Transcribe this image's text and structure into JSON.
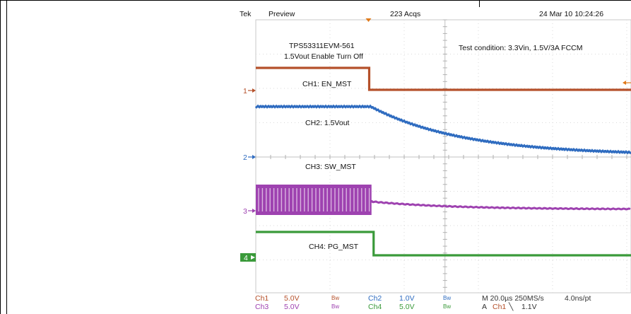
{
  "header": {
    "brand": "Tek",
    "mode": "Preview",
    "acqs": "223 Acqs",
    "timestamp": "24 Mar 10 10:24:26"
  },
  "annotations": {
    "board": "TPS53311EVM-561",
    "title": "1.5Vout Enable Turn Off",
    "condition": "Test condition: 3.3Vin, 1.5V/3A FCCM"
  },
  "channels": [
    {
      "id": "1",
      "label": "CH1: EN_MST",
      "color": "#b5502a"
    },
    {
      "id": "2",
      "label": "CH2: 1.5Vout",
      "color": "#2f6cc0"
    },
    {
      "id": "3",
      "label": "CH3: SW_MST",
      "color": "#9e42b0"
    },
    {
      "id": "4",
      "label": "CH4: PG_MST",
      "color": "#3a9a3a"
    }
  ],
  "footer": {
    "ch1": "Ch1",
    "ch1_scale": "5.0V",
    "ch1_bw": "Bw",
    "ch2": "Ch2",
    "ch2_scale": "1.0V",
    "ch2_bw": "Bw",
    "ch3": "Ch3",
    "ch3_scale": "5.0V",
    "ch3_bw": "Bw",
    "ch4": "Ch4",
    "ch4_scale": "5.0V",
    "ch4_bw": "Bw",
    "timebase": "M 20.0µs 250MS/s",
    "record": "4.0ns/pt",
    "trigger_prefix": "A",
    "trigger_ch": "Ch1",
    "trigger_slope": "╲",
    "trigger_level": "1.1V"
  },
  "chart_data": {
    "type": "line",
    "x_unit": "µs",
    "x_per_division": 20,
    "x_divisions_visible": 6.3,
    "trigger_time_us": 30,
    "series": [
      {
        "name": "CH1: EN_MST",
        "values": {
          "high_v": 5.0,
          "low_v": 0.0,
          "fall_at_us": 30
        }
      },
      {
        "name": "CH2: 1.5Vout",
        "values": {
          "initial_v": 1.5,
          "final_v": 0.05,
          "decay_start_us": 31,
          "tau_us": 25
        }
      },
      {
        "name": "CH3: SW_MST",
        "values": {
          "switching_high_v": 5.0,
          "switching_low_v": 0.0,
          "stop_at_us": 31,
          "residual_v": 0.6
        }
      },
      {
        "name": "CH4: PG_MST",
        "values": {
          "high_v": 0.8,
          "low_v": 0.0,
          "fall_at_us": 31
        }
      }
    ]
  }
}
